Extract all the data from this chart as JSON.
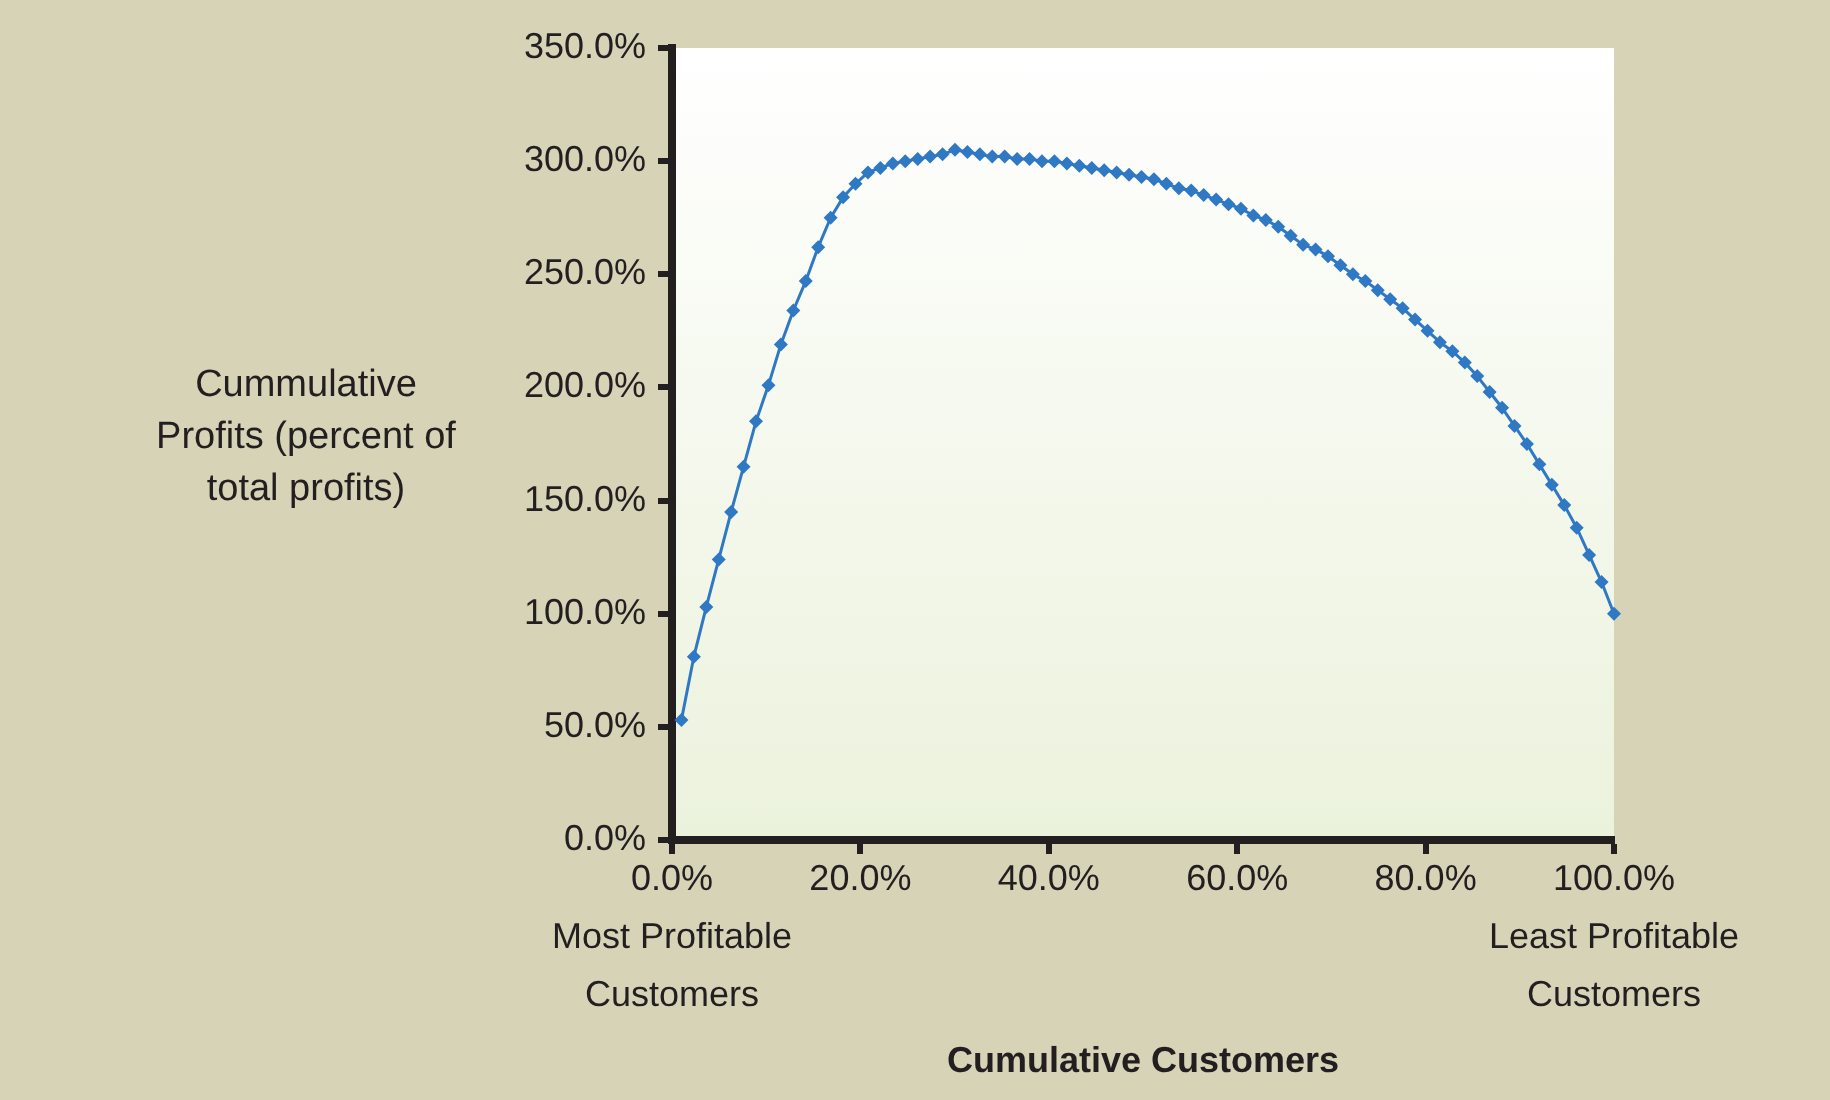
{
  "chart_data": {
    "type": "line",
    "xlabel": "Cumulative Customers",
    "ylabel": "Cummulative Profits (percent of total profits)",
    "annotations": [
      "Most Profitable Customers",
      "Least Profitable Customers"
    ],
    "xlim": [
      0,
      100
    ],
    "xticks": [
      {
        "value": 0,
        "label": "0.0%"
      },
      {
        "value": 20,
        "label": "20.0%"
      },
      {
        "value": 40,
        "label": "40.0%"
      },
      {
        "value": 60,
        "label": "60.0%"
      },
      {
        "value": 80,
        "label": "80.0%"
      },
      {
        "value": 100,
        "label": "100.0%"
      }
    ],
    "ylim": [
      0,
      350
    ],
    "yticks": [
      {
        "value": 0,
        "label": "0.0%"
      },
      {
        "value": 50,
        "label": "50.0%"
      },
      {
        "value": 100,
        "label": "100.0%"
      },
      {
        "value": 150,
        "label": "150.0%"
      },
      {
        "value": 200,
        "label": "200.0%"
      },
      {
        "value": 250,
        "label": "250.0%"
      },
      {
        "value": 300,
        "label": "300.0%"
      },
      {
        "value": 350,
        "label": "350.0%"
      }
    ],
    "grid": false,
    "legend": false,
    "marker": "diamond",
    "line_style": "solid",
    "series": [
      {
        "color": "#2e78c4",
        "x": [
          1.0,
          2.32,
          3.64,
          4.96,
          6.28,
          7.6,
          8.92,
          10.24,
          11.56,
          12.88,
          14.2,
          15.52,
          16.84,
          18.16,
          19.48,
          20.8,
          22.12,
          23.44,
          24.76,
          26.08,
          27.4,
          28.72,
          30.04,
          31.36,
          32.68,
          34.0,
          35.32,
          36.64,
          37.96,
          39.28,
          40.6,
          41.92,
          43.24,
          44.56,
          45.88,
          47.2,
          48.52,
          49.84,
          51.16,
          52.48,
          53.8,
          55.12,
          56.44,
          57.76,
          59.08,
          60.4,
          61.72,
          63.04,
          64.36,
          65.68,
          67.0,
          68.32,
          69.64,
          70.96,
          72.28,
          73.6,
          74.92,
          76.24,
          77.56,
          78.88,
          80.2,
          81.52,
          82.84,
          84.16,
          85.48,
          86.8,
          88.12,
          89.44,
          90.76,
          92.08,
          93.4,
          94.72,
          96.04,
          97.36,
          98.68,
          100.0
        ],
        "values": [
          53,
          81,
          103,
          124,
          145,
          165,
          185,
          201,
          219,
          234,
          247,
          262,
          275,
          284,
          290,
          295,
          297,
          299,
          300,
          301,
          302,
          303,
          305,
          304,
          303,
          302,
          302,
          301,
          301,
          300,
          300,
          299,
          298,
          297,
          296,
          295,
          294,
          293,
          292,
          290,
          288,
          287,
          285,
          283,
          281,
          279,
          276,
          274,
          271,
          267,
          263,
          261,
          258,
          254,
          250,
          247,
          243,
          239,
          235,
          230,
          225,
          220,
          216,
          211,
          205,
          198,
          191,
          183,
          175,
          166,
          157,
          148,
          138,
          126,
          114,
          100
        ]
      }
    ]
  }
}
